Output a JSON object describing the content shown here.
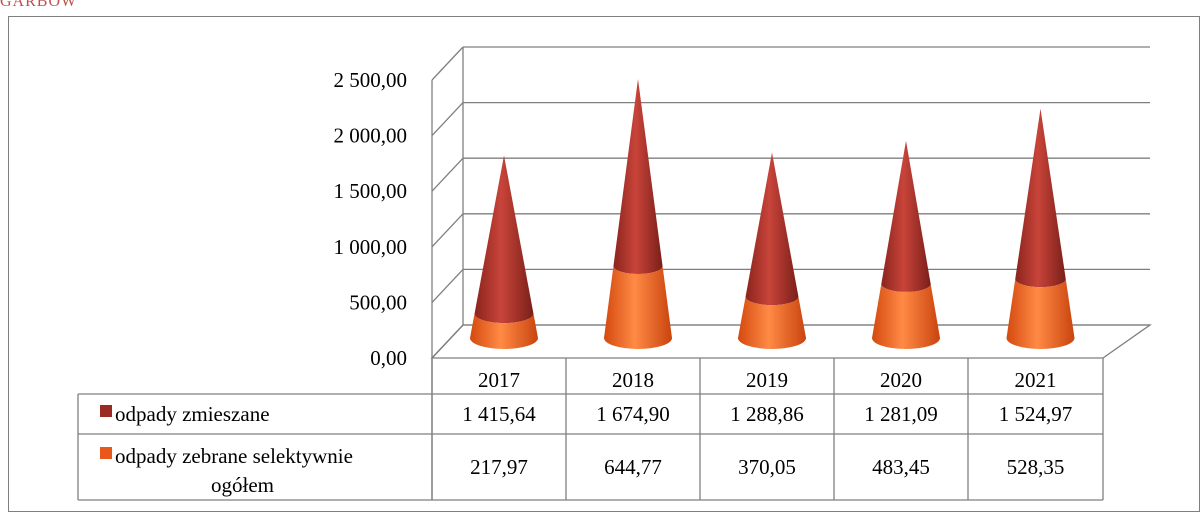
{
  "header_title": "GARBÓW",
  "colors": {
    "mixed": "#9b2a22",
    "mixed_light": "#c8443a",
    "selective": "#e8581a",
    "selective_light": "#ff8a45",
    "grid": "#7f7f7f"
  },
  "chart_data": {
    "type": "bar",
    "shape": "cone",
    "stacked": true,
    "categories": [
      "2017",
      "2018",
      "2019",
      "2020",
      "2021"
    ],
    "series": [
      {
        "name": "odpady zmieszane",
        "values": [
          "1 415,64",
          "1 674,90",
          "1 288,86",
          "1 281,09",
          "1 524,97"
        ]
      },
      {
        "name": "odpady zebrane selektywnie ogółem",
        "values": [
          "217,97",
          "644,77",
          "370,05",
          "483,45",
          "528,35"
        ]
      }
    ],
    "y_ticks": [
      "0,00",
      "500,00",
      "1 000,00",
      "1 500,00",
      "2 000,00",
      "2 500,00"
    ],
    "ylim": [
      0,
      2500
    ],
    "grid": true,
    "legend": "data-table"
  }
}
